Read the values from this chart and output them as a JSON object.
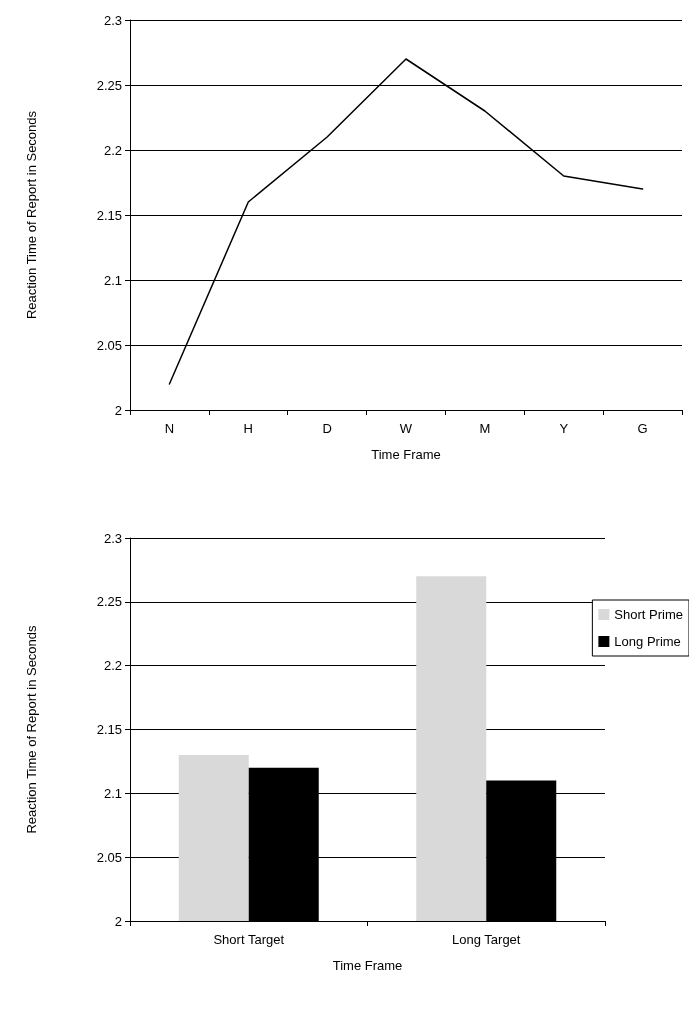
{
  "chart_data": [
    {
      "type": "line",
      "xlabel": "Time Frame",
      "ylabel": "Reaction Time of Report in Seconds",
      "categories": [
        "N",
        "H",
        "D",
        "W",
        "M",
        "Y",
        "G"
      ],
      "series": [
        {
          "color": "#000000",
          "values": [
            2.02,
            2.16,
            2.21,
            2.27,
            2.23,
            2.18,
            2.17
          ]
        }
      ],
      "ylim": [
        2,
        2.3
      ],
      "yticks": [
        2,
        2.05,
        2.1,
        2.15,
        2.2,
        2.25,
        2.3
      ],
      "grid": "y",
      "marker": "none",
      "line_style": "solid"
    },
    {
      "type": "bar",
      "xlabel": "Time Frame",
      "ylabel": "Reaction Time of Report in Seconds",
      "categories": [
        "Short Target",
        "Long Target"
      ],
      "series": [
        {
          "name": "Short Prime",
          "color": "#d9d9d9",
          "values": [
            2.13,
            2.27
          ]
        },
        {
          "name": "Long Prime",
          "color": "#000000",
          "values": [
            2.12,
            2.11
          ]
        }
      ],
      "ylim": [
        2,
        2.3
      ],
      "yticks": [
        2,
        2.05,
        2.1,
        2.15,
        2.2,
        2.25,
        2.3
      ],
      "grid": "y",
      "legend": "right"
    }
  ]
}
